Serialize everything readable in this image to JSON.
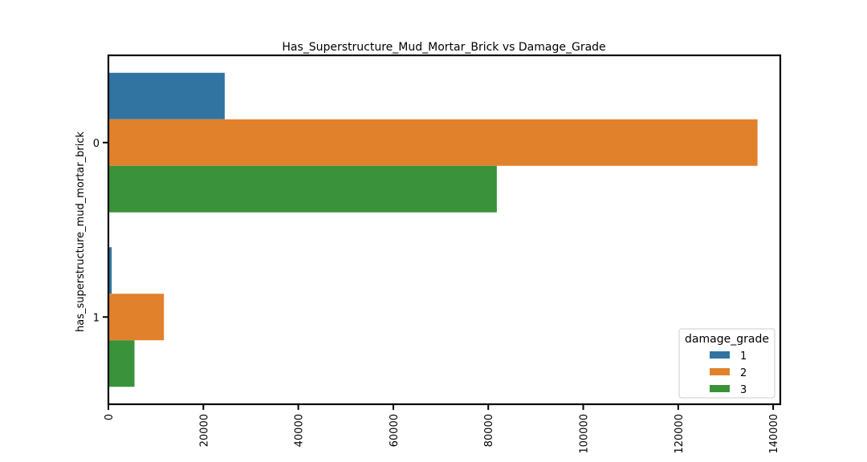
{
  "chart_data": {
    "type": "bar",
    "orientation": "horizontal",
    "title": "Has_Superstructure_Mud_Mortar_Brick vs Damage_Grade",
    "ylabel": "has_superstructure_mud_mortar_brick",
    "xlabel": "",
    "categories": [
      "0",
      "1"
    ],
    "xlim": [
      0,
      141500
    ],
    "xticks": [
      0,
      20000,
      40000,
      60000,
      80000,
      100000,
      120000,
      140000
    ],
    "xtick_labels": [
      "0",
      "20000",
      "40000",
      "60000",
      "80000",
      "100000",
      "120000",
      "140000"
    ],
    "grid": false,
    "legend": {
      "title": "damage_grade",
      "placement": "lower-right"
    },
    "series": [
      {
        "name": "1",
        "color": "#3274a1",
        "values": [
          24500,
          700
        ]
      },
      {
        "name": "2",
        "color": "#e1812c",
        "values": [
          136700,
          11700
        ]
      },
      {
        "name": "3",
        "color": "#3a923a",
        "values": [
          81800,
          5500
        ]
      }
    ]
  }
}
